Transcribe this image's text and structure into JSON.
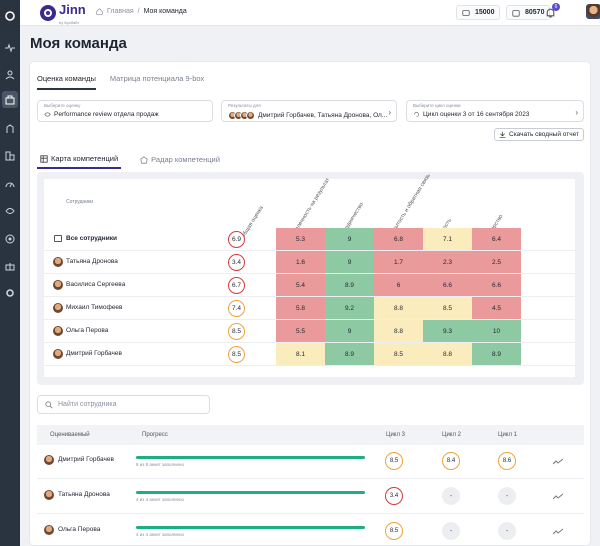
{
  "brand": {
    "name": "Jinn",
    "sub": "by Бусбайт"
  },
  "breadcrumbs": {
    "home": "Главная",
    "separator": "/",
    "current": "Моя команда"
  },
  "counters": {
    "coins": "15000",
    "wallet": "80570"
  },
  "notifications": {
    "count": "6"
  },
  "page": {
    "title": "Моя команда"
  },
  "tabs": [
    "Оценка команды",
    "Матрица потенциала 9-box"
  ],
  "filters": {
    "assessment": {
      "label": "Выберите оценку",
      "value": "Performance review отдела продаж"
    },
    "results": {
      "label": "Результаты для",
      "value": "Дмитрий Горбачев, Татьяна Дронова, Ол..."
    },
    "cycle": {
      "label": "Выберите цикл оценки",
      "value": "Цикл оценки 3 от 16 сентября 2023"
    }
  },
  "download_button": "Скачать сводный отчет",
  "view_tabs": [
    "Карта компетенций",
    "Радар компетенций"
  ],
  "heatmap": {
    "employees_header": "Сотрудники",
    "columns": [
      "Общая оценка",
      "Нацеленность на результат",
      "Сотрудничество",
      "Открытость и обратная связь",
      "Гибкость",
      "Лидерство"
    ],
    "rows": [
      {
        "name": "Все сотрудники",
        "overall": "6.9",
        "values": [
          "5.3",
          "9",
          "6.8",
          "7.1",
          "6.4"
        ]
      },
      {
        "name": "Татьяна Дронова",
        "overall": "3.4",
        "values": [
          "1.6",
          "9",
          "1.7",
          "2.3",
          "2.5"
        ]
      },
      {
        "name": "Василиса Сергеева",
        "overall": "6.7",
        "values": [
          "5.4",
          "8.9",
          "6",
          "6.6",
          "6.6"
        ]
      },
      {
        "name": "Михаил Тимофеев",
        "overall": "7.4",
        "values": [
          "5.8",
          "9.2",
          "8.8",
          "8.5",
          "4.5"
        ]
      },
      {
        "name": "Ольга Перова",
        "overall": "8.5",
        "values": [
          "5.5",
          "9",
          "8.8",
          "9.3",
          "10"
        ]
      },
      {
        "name": "Дмитрий Горбачев",
        "overall": "8.5",
        "values": [
          "8.1",
          "8.9",
          "8.5",
          "8.8",
          "8.9"
        ]
      }
    ]
  },
  "search": {
    "placeholder": "Найти сотрудника"
  },
  "table": {
    "headers": {
      "employee": "Оцениваемый",
      "progress": "Прогресс",
      "c3": "Цикл 3",
      "c2": "Цикл 2",
      "c1": "Цикл 1"
    },
    "rows": [
      {
        "name": "Дмитрий Горбачев",
        "progress_text": "8 из 8 анкет заполнено",
        "progress": 1.0,
        "c3": "8.5",
        "c2": "8.4",
        "c1": "8.6"
      },
      {
        "name": "Татьяна Дронова",
        "progress_text": "4 из 4 анкет заполнено",
        "progress": 1.0,
        "c3": "3.4",
        "c2": "-",
        "c1": "-"
      },
      {
        "name": "Ольга Перова",
        "progress_text": "4 из 4 анкет заполнено",
        "progress": 1.0,
        "c3": "8.5",
        "c2": "-",
        "c1": "-"
      }
    ]
  },
  "colors": {
    "red": "#ea9a9a",
    "green": "#8dc9a3",
    "yellow": "#fbecbd",
    "ring_red": "#d63b3b",
    "ring_orange": "#f0a23a",
    "accent": "#3a2b8f",
    "progress": "#1fae84"
  }
}
